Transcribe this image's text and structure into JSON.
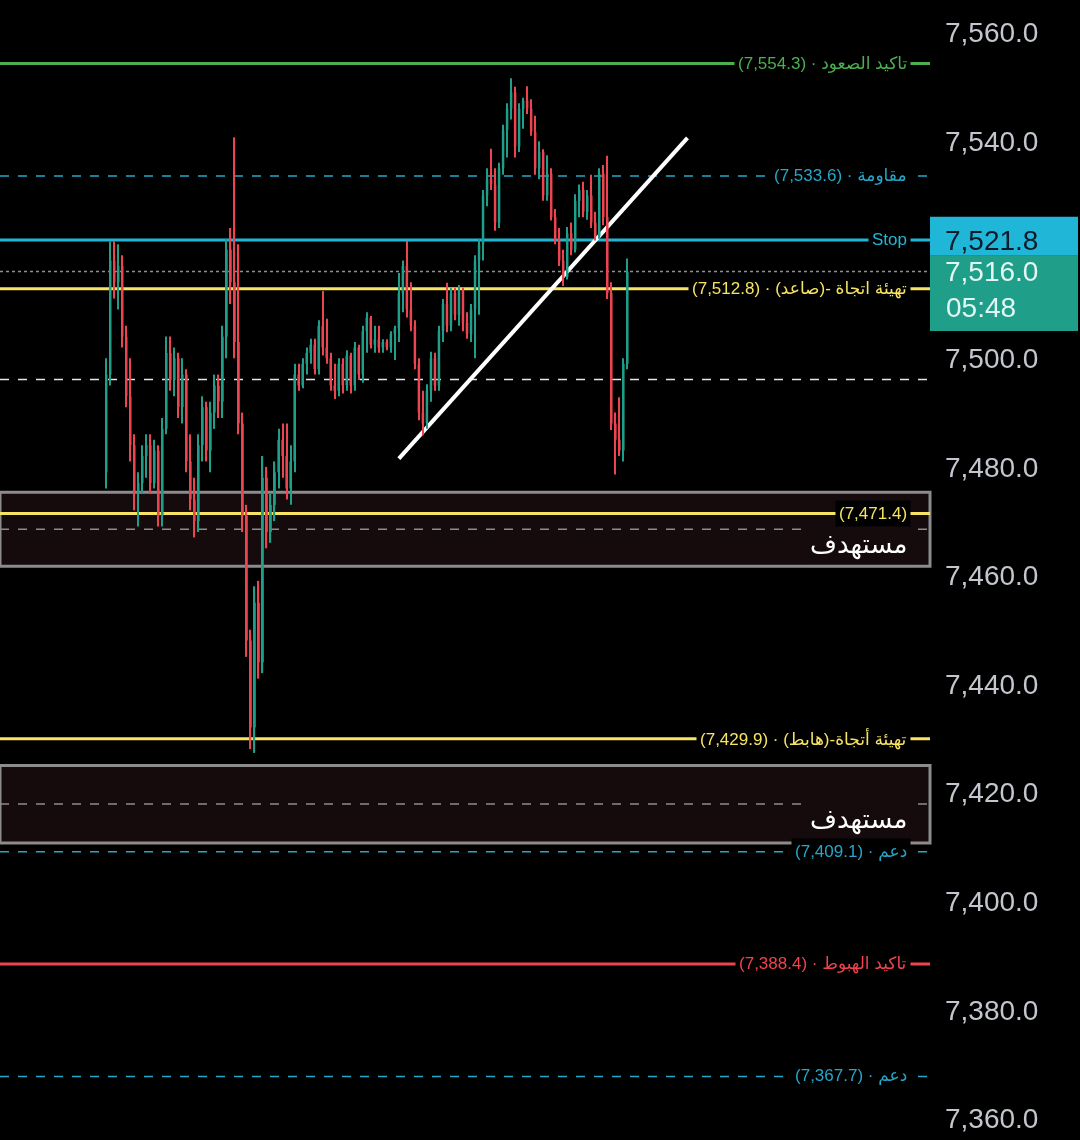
{
  "chart_data": {
    "type": "candlestick",
    "categories": [
      null,
      null,
      null,
      null,
      null,
      null,
      null,
      null,
      null,
      null,
      null,
      null,
      null,
      null,
      null,
      null,
      null,
      null,
      null,
      null,
      null,
      null,
      null,
      null,
      null,
      null,
      null,
      null,
      null,
      null,
      null,
      null,
      null,
      null,
      null,
      null,
      null,
      null,
      null,
      null,
      null,
      null,
      null,
      null,
      null,
      null,
      null,
      null,
      null,
      null,
      null,
      null,
      null,
      null,
      null,
      null,
      null,
      null,
      null,
      null,
      null,
      null,
      null,
      null,
      null,
      null,
      null,
      null,
      null,
      null,
      null,
      null,
      null,
      null,
      null,
      null,
      null,
      null,
      null,
      null,
      null,
      null,
      null,
      null,
      null,
      null,
      null,
      null,
      null,
      null,
      null,
      null,
      null,
      null,
      null,
      null,
      null,
      null,
      null,
      null,
      null,
      null,
      null,
      null,
      null,
      null,
      null,
      null,
      null,
      null,
      null,
      null,
      null,
      null,
      null,
      null,
      null,
      null,
      null,
      null,
      null,
      null,
      null,
      null,
      null,
      null,
      null,
      null,
      null,
      null,
      null,
      null,
      null,
      null,
      null,
      null,
      null,
      null,
      null,
      null,
      null,
      null,
      null,
      null,
      null,
      null,
      null,
      null,
      null,
      null,
      null,
      null,
      null,
      null,
      null,
      null,
      null,
      null,
      null,
      null,
      null,
      null,
      null,
      null,
      null,
      null,
      null,
      null,
      null,
      null,
      null,
      null,
      null,
      null,
      null,
      null,
      null,
      null,
      null,
      null,
      null,
      null,
      null,
      null,
      null,
      null,
      null,
      null,
      null,
      null,
      null,
      null,
      null,
      null,
      null,
      null,
      null,
      null,
      null,
      null,
      null,
      null,
      null,
      null,
      null,
      null,
      null,
      null,
      null,
      null,
      null,
      null,
      null,
      null,
      null,
      null,
      null,
      null,
      null,
      null,
      null,
      null,
      null,
      null,
      null,
      null,
      null,
      null,
      null,
      null,
      null,
      null
    ],
    "ohlc": [
      null,
      null,
      null,
      null,
      null,
      null,
      null,
      null,
      null,
      null,
      null,
      null,
      null,
      null,
      null,
      null,
      null,
      null,
      null,
      null,
      null,
      null,
      null,
      null,
      null,
      null,
      [
        7479,
        7500,
        7476,
        7497
      ],
      [
        7497,
        7521.5,
        7495,
        7518
      ],
      [
        7518,
        7521.5,
        7511,
        7514
      ],
      [
        7514,
        7521,
        7509,
        7517
      ],
      [
        7517,
        7519,
        7502,
        7504
      ],
      [
        7504,
        7506,
        7491,
        7493
      ],
      [
        7493,
        7500,
        7481,
        7484
      ],
      [
        7484,
        7486,
        7472,
        7475
      ],
      [
        7475,
        7479,
        7469,
        7477
      ],
      [
        7477,
        7484,
        7475,
        7482
      ],
      [
        7482,
        7486,
        7478,
        7484
      ],
      [
        7484,
        7486,
        7475,
        7477
      ],
      [
        7477,
        7485,
        7476,
        7483
      ],
      [
        7483,
        7484,
        7469,
        7471
      ],
      [
        7471,
        7489,
        7469,
        7487
      ],
      [
        7487,
        7504,
        7486,
        7501
      ],
      [
        7501,
        7504,
        7494,
        7496
      ],
      [
        7496,
        7502,
        7493,
        7500
      ],
      [
        7500,
        7501,
        7489,
        7491
      ],
      [
        7491,
        7500,
        7488,
        7497
      ],
      [
        7497,
        7498,
        7479,
        7481
      ],
      [
        7481,
        7486,
        7472,
        7474
      ],
      [
        7474,
        7478,
        7467,
        7470
      ],
      [
        7470,
        7486,
        7468,
        7484
      ],
      [
        7484,
        7493,
        7481,
        7491
      ],
      [
        7491,
        7492,
        7481,
        7483
      ],
      [
        7483,
        7492,
        7479,
        7490
      ],
      [
        7490,
        7497,
        7487,
        7495
      ],
      [
        7495,
        7497,
        7489,
        7492
      ],
      [
        7492,
        7506,
        7489,
        7504
      ],
      [
        7504,
        7522,
        7500,
        7520
      ],
      [
        7520,
        7524,
        7510,
        7514
      ],
      [
        7514,
        7540.7,
        7500,
        7503
      ],
      [
        7503,
        7521,
        7486,
        7488
      ],
      [
        7488,
        7490,
        7468,
        7471
      ],
      [
        7471,
        7473,
        7445,
        7448
      ],
      [
        7448,
        7450,
        7428,
        7432
      ],
      [
        7432,
        7458,
        7427.3,
        7455
      ],
      [
        7455,
        7459,
        7441,
        7444
      ],
      [
        7444,
        7482,
        7442,
        7478
      ],
      [
        7478,
        7480,
        7465,
        7468
      ],
      [
        7468,
        7475,
        7466,
        7473
      ],
      [
        7473,
        7481,
        7470,
        7479
      ],
      [
        7479,
        7487,
        7476,
        7485
      ],
      [
        7485,
        7488,
        7478,
        7482
      ],
      [
        7482,
        7488,
        7474,
        7476
      ],
      [
        7476,
        7484,
        7473,
        7481
      ],
      [
        7481,
        7499,
        7479,
        7497
      ],
      [
        7497,
        7499,
        7494,
        7495
      ],
      [
        7495,
        7500,
        7494.5,
        7499
      ],
      [
        7499,
        7502,
        7497,
        7501
      ],
      [
        7501,
        7503.6,
        7499,
        7502.5
      ],
      [
        7502.5,
        7503.6,
        7497,
        7498
      ],
      [
        7498,
        7507,
        7497,
        7506
      ],
      [
        7506,
        7512.4,
        7500.5,
        7502
      ],
      [
        7502,
        7507.3,
        7499,
        7500
      ],
      [
        7500,
        7501,
        7494,
        7495
      ],
      [
        7495,
        7499,
        7492.5,
        7494
      ],
      [
        7494,
        7500,
        7493,
        7499
      ],
      [
        7499,
        7500,
        7493.5,
        7495
      ],
      [
        7495,
        7501.5,
        7494,
        7500.5
      ],
      [
        7500.5,
        7501,
        7493.5,
        7495
      ],
      [
        7495,
        7503,
        7494,
        7502
      ],
      [
        7502,
        7502.5,
        7496,
        7497
      ],
      [
        7497,
        7506,
        7495.5,
        7505
      ],
      [
        7505,
        7508.5,
        7501,
        7507.5
      ],
      [
        7507.5,
        7507.8,
        7501.8,
        7502.5
      ],
      [
        7502.5,
        7506,
        7501,
        7503.5
      ],
      [
        7503.5,
        7506,
        7501,
        7502
      ],
      [
        7502,
        7503.5,
        7501,
        7503
      ],
      [
        7503,
        7503.5,
        7501.5,
        7502
      ],
      [
        7502,
        7505,
        7501,
        7504.5
      ],
      [
        7504.5,
        7506,
        7499.7,
        7505.5
      ],
      [
        7505.5,
        7515.7,
        7503,
        7512
      ],
      [
        7512,
        7518,
        7508.5,
        7517
      ],
      [
        7517,
        7521.6,
        7507.5,
        7509
      ],
      [
        7509,
        7514,
        7505,
        7506
      ],
      [
        7506,
        7507,
        7498,
        7499
      ],
      [
        7499,
        7500,
        7488.6,
        7490
      ],
      [
        7490,
        7494,
        7485.8,
        7488
      ],
      [
        7488,
        7495.2,
        7487,
        7494
      ],
      [
        7494,
        7501.2,
        7492,
        7500
      ],
      [
        7500,
        7501,
        7494,
        7495
      ],
      [
        7495,
        7506,
        7494,
        7505
      ],
      [
        7505,
        7510.9,
        7503,
        7510
      ],
      [
        7510,
        7513.9,
        7504.8,
        7506
      ],
      [
        7506,
        7513,
        7505,
        7512
      ],
      [
        7512,
        7513,
        7507,
        7508
      ],
      [
        7508,
        7513.5,
        7506,
        7512.5
      ],
      [
        7512.5,
        7513,
        7505,
        7506.5
      ],
      [
        7506.5,
        7508.5,
        7503.6,
        7504.5
      ],
      [
        7504.5,
        7510,
        7503,
        7509
      ],
      [
        7509,
        7519,
        7500,
        7518
      ],
      [
        7518,
        7522,
        7508,
        7521
      ],
      [
        7521,
        7531,
        7518,
        7530
      ],
      [
        7530,
        7535,
        7528,
        7533
      ],
      [
        7533,
        7538.6,
        7531,
        7532
      ],
      [
        7532,
        7535,
        7523.5,
        7525
      ],
      [
        7525,
        7536,
        7524,
        7535
      ],
      [
        7535,
        7543,
        7533.8,
        7542
      ],
      [
        7542,
        7547,
        7537,
        7546
      ],
      [
        7546,
        7551.6,
        7544,
        7549
      ],
      [
        7549,
        7550,
        7537,
        7539
      ],
      [
        7539,
        7547,
        7538,
        7546
      ],
      [
        7546,
        7548,
        7542.3,
        7547.5
      ],
      [
        7547.5,
        7550.1,
        7545,
        7546
      ],
      [
        7546,
        7547.7,
        7541,
        7541.7
      ],
      [
        7541.7,
        7544.7,
        7533.8,
        7535
      ],
      [
        7535,
        7540,
        7533,
        7538
      ],
      [
        7538,
        7538.5,
        7529,
        7530
      ],
      [
        7530,
        7537.4,
        7529,
        7534
      ],
      [
        7534,
        7535,
        7525.4,
        7526
      ],
      [
        7526,
        7527.5,
        7521,
        7522
      ],
      [
        7522,
        7524,
        7517,
        7518
      ],
      [
        7518,
        7520,
        7513.3,
        7515
      ],
      [
        7515,
        7524.2,
        7514.5,
        7523
      ],
      [
        7523,
        7525,
        7519,
        7520
      ],
      [
        7520,
        7530.2,
        7519.5,
        7529
      ],
      [
        7529,
        7532,
        7526,
        7531
      ],
      [
        7531,
        7532.5,
        7526,
        7527
      ],
      [
        7527,
        7531,
        7525.5,
        7530
      ],
      [
        7530,
        7533.8,
        7524,
        7525
      ],
      [
        7525,
        7527,
        7521.7,
        7522.5
      ],
      [
        7522.5,
        7535,
        7522,
        7534
      ],
      [
        7534,
        7535.6,
        7524.5,
        7526
      ],
      [
        7526,
        7537.3,
        7510.9,
        7512
      ],
      [
        7512,
        7514,
        7486.8,
        7488
      ],
      [
        7488,
        7490,
        7478.6,
        7485
      ],
      [
        7485,
        7492.8,
        7482,
        7483
      ],
      [
        7483,
        7500,
        7481,
        7499
      ],
      [
        7499,
        7518.4,
        7498,
        7516
      ],
      null,
      null,
      null,
      null,
      null,
      null,
      null,
      null,
      null,
      null,
      null,
      null,
      null,
      null,
      null,
      null,
      null,
      null,
      null,
      null,
      null,
      null,
      null,
      null,
      null,
      null,
      null,
      null,
      null,
      null,
      null,
      null,
      null,
      null,
      null,
      null,
      null,
      null,
      null,
      null,
      null,
      null,
      null,
      null,
      null,
      null,
      null,
      null,
      null,
      null,
      null,
      null,
      null,
      null,
      null,
      null,
      null,
      null,
      null,
      null,
      null,
      null,
      null,
      null,
      null,
      null,
      null,
      null,
      null,
      null,
      null,
      null,
      null,
      null,
      null
    ],
    "colors": [
      null,
      null,
      null,
      null,
      null,
      null,
      null,
      null,
      null,
      null,
      null,
      null,
      null,
      null,
      null,
      null,
      null,
      null,
      null,
      null,
      null,
      null,
      null,
      null,
      null,
      null,
      "#1f9e89",
      "#1f9e89",
      "#ec4450",
      "#1f9e89",
      "#ec4450",
      "#ec4450",
      "#ec4450",
      "#ec4450",
      "#1f9e89",
      "#1f9e89",
      "#1f9e89",
      "#ec4450",
      "#1f9e89",
      "#ec4450",
      "#1f9e89",
      "#1f9e89",
      "#ec4450",
      "#1f9e89",
      "#ec4450",
      "#1f9e89",
      "#ec4450",
      "#ec4450",
      "#ec4450",
      "#1f9e89",
      "#1f9e89",
      "#ec4450",
      "#1f9e89",
      "#1f9e89",
      "#ec4450",
      "#1f9e89",
      "#1f9e89",
      "#ec4450",
      "#ec4450",
      "#ec4450",
      "#ec4450",
      "#ec4450",
      "#ec4450",
      "#1f9e89",
      "#ec4450",
      "#1f9e89",
      "#ec4450",
      "#1f9e89",
      "#1f9e89",
      "#1f9e89",
      "#ec4450",
      "#ec4450",
      "#1f9e89",
      "#1f9e89",
      "#ec4450",
      "#1f9e89",
      "#1f9e89",
      "#1f9e89",
      "#ec4450",
      "#1f9e89",
      "#ec4450",
      "#ec4450",
      "#ec4450",
      "#ec4450",
      "#1f9e89",
      "#ec4450",
      "#1f9e89",
      "#ec4450",
      "#1f9e89",
      "#ec4450",
      "#1f9e89",
      "#1f9e89",
      "#ec4450",
      "#1f9e89",
      "#ec4450",
      "#1f9e89",
      "#ec4450",
      "#1f9e89",
      "#1f9e89",
      "#1f9e89",
      "#1f9e89",
      "#ec4450",
      "#ec4450",
      "#ec4450",
      "#ec4450",
      "#ec4450",
      "#1f9e89",
      "#1f9e89",
      "#ec4450",
      "#1f9e89",
      "#1f9e89",
      "#ec4450",
      "#1f9e89",
      "#ec4450",
      "#1f9e89",
      "#ec4450",
      "#ec4450",
      "#1f9e89",
      "#1f9e89",
      "#1f9e89",
      "#1f9e89",
      "#1f9e89",
      "#ec4450",
      "#ec4450",
      "#1f9e89",
      "#1f9e89",
      "#1f9e89",
      "#1f9e89",
      "#ec4450",
      "#1f9e89",
      "#1f9e89",
      "#ec4450",
      "#ec4450",
      "#ec4450",
      "#1f9e89",
      "#ec4450",
      "#1f9e89",
      "#ec4450",
      "#ec4450",
      "#ec4450",
      "#ec4450",
      "#1f9e89",
      "#ec4450",
      "#1f9e89",
      "#1f9e89",
      "#ec4450",
      "#1f9e89",
      "#ec4450",
      "#ec4450",
      "#1f9e89",
      "#ec4450",
      "#ec4450",
      "#ec4450",
      "#ec4450",
      "#ec4450",
      "#1f9e89",
      "#1f9e89",
      null,
      null,
      null,
      null,
      null,
      null,
      null,
      null,
      null,
      null,
      null,
      null,
      null,
      null,
      null,
      null,
      null,
      null,
      null,
      null,
      null,
      null,
      null,
      null,
      null,
      null,
      null,
      null,
      null,
      null,
      null,
      null,
      null,
      null,
      null,
      null,
      null,
      null,
      null,
      null,
      null,
      null,
      null,
      null,
      null,
      null,
      null,
      null,
      null,
      null,
      null,
      null,
      null,
      null,
      null,
      null,
      null,
      null,
      null,
      null,
      null,
      null,
      null,
      null,
      null,
      null,
      null,
      null,
      null,
      null,
      null,
      null,
      null,
      null,
      null
    ],
    "series": [
      {
        "type": "line",
        "color": "#ffffff",
        "values": [
          null,
          null,
          null,
          null,
          null,
          null,
          null,
          null,
          null,
          null,
          null,
          null,
          null,
          null,
          null,
          null,
          null,
          null,
          null,
          null,
          null,
          null,
          null,
          null,
          null,
          null,
          null,
          null,
          null,
          null,
          null,
          null,
          null,
          null,
          null,
          null,
          null,
          null,
          null,
          null,
          null,
          null,
          null,
          null,
          null,
          null,
          null,
          null,
          null,
          null,
          null,
          null,
          null,
          null,
          null,
          null,
          null,
          null,
          null,
          null,
          null,
          null,
          null,
          null,
          null,
          null,
          null,
          null,
          null,
          null,
          null,
          null,
          null,
          null,
          null,
          null,
          null,
          null,
          null,
          null,
          null,
          null,
          null,
          null,
          null,
          null,
          null,
          null,
          null,
          null,
          null,
          null,
          null,
          null,
          null,
          null,
          null,
          null,
          null,
          7481.5,
          null,
          null,
          null,
          null,
          null,
          null,
          null,
          null,
          null,
          null,
          null,
          null,
          null,
          null,
          null,
          null,
          null,
          null,
          null,
          null,
          null,
          null,
          null,
          null,
          null,
          null,
          null,
          null,
          null,
          null,
          null,
          null,
          null,
          null,
          null,
          null,
          null,
          null,
          null,
          null,
          null,
          null,
          null,
          null,
          null,
          null,
          null,
          null,
          null,
          null,
          null,
          null,
          null,
          null,
          null,
          null,
          null,
          null,
          null,
          null,
          null,
          null,
          null,
          null,
          null,
          null,
          null,
          null,
          null,
          null,
          null,
          7540.6,
          null,
          null,
          null,
          null,
          null,
          null,
          null,
          null,
          null,
          null,
          null,
          null,
          null,
          null,
          null,
          null,
          null,
          null,
          null,
          null,
          null,
          null,
          null,
          null,
          null,
          null,
          null,
          null,
          null,
          null,
          null,
          null,
          null,
          null,
          null,
          null,
          null,
          null,
          null,
          null,
          null,
          null,
          null,
          null,
          null,
          null,
          null,
          null,
          null,
          null,
          null,
          null,
          null,
          null,
          null,
          null,
          null,
          null,
          null,
          null
        ]
      }
    ],
    "ylim": [
      7356,
      7566
    ],
    "yticks": [
      {
        "value": 7360,
        "label": "7,360.0"
      },
      {
        "value": 7380,
        "label": "7,380.0"
      },
      {
        "value": 7400,
        "label": "7,400.0"
      },
      {
        "value": 7420,
        "label": "7,420.0"
      },
      {
        "value": 7440,
        "label": "7,440.0"
      },
      {
        "value": 7460,
        "label": "7,460.0"
      },
      {
        "value": 7480,
        "label": "7,480.0"
      },
      {
        "value": 7500,
        "label": "7,500.0"
      },
      {
        "value": 7516.0,
        "label": "7,516.0"
      },
      {
        "value": 7521.8,
        "label": "7,521.8"
      },
      {
        "value": 7540,
        "label": "7,540.0"
      },
      {
        "value": 7560,
        "label": "7,560.0"
      }
    ],
    "tick_labels": "y",
    "bands": [
      {
        "axis": "y",
        "from": 7461.7,
        "to": 7475.3,
        "label": "مستهدف",
        "color": "#150a0c"
      },
      {
        "axis": "y",
        "from": 7410.7,
        "to": 7425.0,
        "label": "مستهدف",
        "color": "#150a0c"
      }
    ],
    "ref_lines": [
      {
        "axis": "y",
        "value": 7554.3,
        "label": "تاكيد الصعود · (7,554.3)",
        "color": "#4caf50",
        "line_style": "solid"
      },
      {
        "axis": "y",
        "value": 7533.6,
        "label": "مقاومة · (7,533.6)",
        "color": "#26a6c9",
        "line_style": "dashed"
      },
      {
        "axis": "y",
        "value": 7521.8,
        "label": "Stop",
        "color": "#1fb6d8",
        "line_style": "solid"
      },
      {
        "axis": "y",
        "value": 7516.0,
        "color": "#8b8f97",
        "line_style": "dotted"
      },
      {
        "axis": "y",
        "value": 7512.8,
        "label": "تهيئة اتجاة -(صاعد) · (7,512.8)",
        "color": "#f7e463",
        "line_style": "solid"
      },
      {
        "axis": "y",
        "value": 7496.1,
        "color": "#e6e6e6",
        "line_style": "dashed"
      },
      {
        "axis": "y",
        "value": 7471.4,
        "label": "(7,471.4)",
        "color": "#f7e463",
        "line_style": "solid"
      },
      {
        "axis": "y",
        "value": 7468.5,
        "color": "#8c8c8c",
        "line_style": "dashed"
      },
      {
        "axis": "y",
        "value": 7429.9,
        "label": "تهيئة أتجاة-(هابط) · (7,429.9)",
        "color": "#f7e463",
        "line_style": "solid"
      },
      {
        "axis": "y",
        "value": 7417.9,
        "color": "#8c8c8c",
        "line_style": "dashed"
      },
      {
        "axis": "y",
        "value": 7409.1,
        "label": "دعم · (7,409.1)",
        "color": "#26a6c9",
        "line_style": "dashed"
      },
      {
        "axis": "y",
        "value": 7388.4,
        "label": "تاكيد الهبوط · (7,388.4)",
        "color": "#f0434e",
        "line_style": "solid"
      },
      {
        "axis": "y",
        "value": 7367.7,
        "label": "دعم · (7,367.7)",
        "color": "#26a6c9",
        "line_style": "dashed"
      }
    ],
    "annotations": [
      "05:48"
    ]
  }
}
